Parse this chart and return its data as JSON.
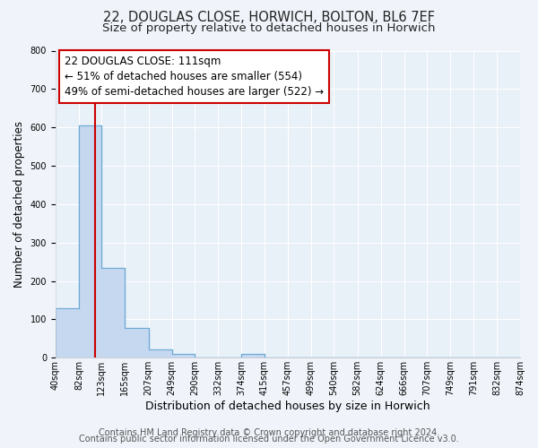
{
  "title": "22, DOUGLAS CLOSE, HORWICH, BOLTON, BL6 7EF",
  "subtitle": "Size of property relative to detached houses in Horwich",
  "xlabel": "Distribution of detached houses by size in Horwich",
  "ylabel": "Number of detached properties",
  "bar_values": [
    130,
    605,
    235,
    78,
    22,
    10,
    0,
    0,
    10,
    0,
    0,
    0,
    0,
    0,
    0,
    0,
    0,
    0,
    0,
    0
  ],
  "bin_edges": [
    40,
    82,
    123,
    165,
    207,
    249,
    290,
    332,
    374,
    415,
    457,
    499,
    540,
    582,
    624,
    666,
    707,
    749,
    791,
    832,
    874
  ],
  "tick_labels": [
    "40sqm",
    "82sqm",
    "123sqm",
    "165sqm",
    "207sqm",
    "249sqm",
    "290sqm",
    "332sqm",
    "374sqm",
    "415sqm",
    "457sqm",
    "499sqm",
    "540sqm",
    "582sqm",
    "624sqm",
    "666sqm",
    "707sqm",
    "749sqm",
    "791sqm",
    "832sqm",
    "874sqm"
  ],
  "bar_color": "#c5d8f0",
  "bar_edge_color": "#6aaad4",
  "property_line_x": 111,
  "property_line_color": "#cc0000",
  "annotation_line1": "22 DOUGLAS CLOSE: 111sqm",
  "annotation_line2": "← 51% of detached houses are smaller (554)",
  "annotation_line3": "49% of semi-detached houses are larger (522) →",
  "annotation_box_facecolor": "#ffffff",
  "annotation_box_edgecolor": "#cc0000",
  "ylim": [
    0,
    800
  ],
  "yticks": [
    0,
    100,
    200,
    300,
    400,
    500,
    600,
    700,
    800
  ],
  "footer_line1": "Contains HM Land Registry data © Crown copyright and database right 2024.",
  "footer_line2": "Contains public sector information licensed under the Open Government Licence v3.0.",
  "fig_bg_color": "#f0f4fa",
  "plot_bg_color": "#e8f0f8",
  "grid_color": "#ffffff",
  "title_fontsize": 10.5,
  "subtitle_fontsize": 9.5,
  "xlabel_fontsize": 9,
  "ylabel_fontsize": 8.5,
  "tick_fontsize": 7,
  "annotation_fontsize": 8.5,
  "footer_fontsize": 7
}
